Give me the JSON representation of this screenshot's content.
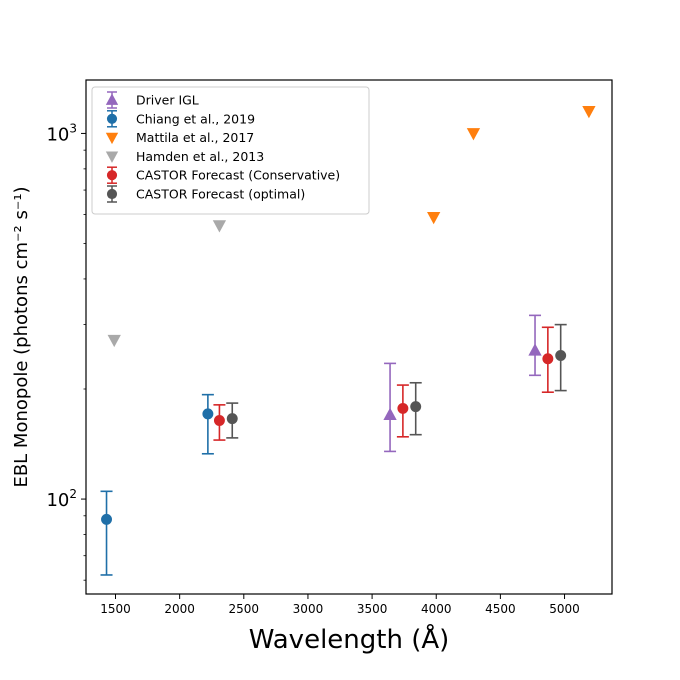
{
  "chart_data": {
    "type": "scatter",
    "title": "",
    "xlabel": "Wavelength (Å)",
    "ylabel": "EBL Monopole (photons cm⁻² s⁻¹)",
    "xlim": [
      1270,
      5370
    ],
    "ylim": [
      55,
      1400
    ],
    "yscale": "log",
    "xticks": [
      1500,
      2000,
      2500,
      3000,
      3500,
      4000,
      4500,
      5000
    ],
    "yticks": [
      {
        "value": 100,
        "base": "10",
        "exp": "2"
      },
      {
        "value": 1000,
        "base": "10",
        "exp": "3"
      }
    ],
    "grid": false,
    "legend_position": "upper-left",
    "series": [
      {
        "name": "Driver IGL",
        "color": "#9467bd",
        "marker": "triangle-up",
        "errorbars": true,
        "points": [
          {
            "x": 3640,
            "y": 170,
            "ylow": 135,
            "yhigh": 235
          },
          {
            "x": 4770,
            "y": 255,
            "ylow": 218,
            "yhigh": 318
          }
        ]
      },
      {
        "name": "Chiang et al., 2019",
        "color": "#1f6fa8",
        "marker": "circle",
        "errorbars": true,
        "points": [
          {
            "x": 1430,
            "y": 88,
            "ylow": 62,
            "yhigh": 105
          },
          {
            "x": 2220,
            "y": 171,
            "ylow": 133,
            "yhigh": 193
          }
        ]
      },
      {
        "name": "Mattila et al., 2017",
        "color": "#ff7f0e",
        "marker": "triangle-down",
        "errorbars": false,
        "points": [
          {
            "x": 3980,
            "y": 590
          },
          {
            "x": 4290,
            "y": 1000
          },
          {
            "x": 5190,
            "y": 1150
          }
        ]
      },
      {
        "name": "Hamden et al., 2013",
        "color": "#a9a9a9",
        "marker": "triangle-down",
        "errorbars": false,
        "points": [
          {
            "x": 1490,
            "y": 272
          },
          {
            "x": 2310,
            "y": 560
          }
        ]
      },
      {
        "name": "CASTOR Forecast (Conservative)",
        "color": "#d62728",
        "marker": "circle",
        "errorbars": true,
        "points": [
          {
            "x": 2310,
            "y": 164,
            "ylow": 145,
            "yhigh": 181
          },
          {
            "x": 3740,
            "y": 177,
            "ylow": 148,
            "yhigh": 205
          },
          {
            "x": 4870,
            "y": 242,
            "ylow": 196,
            "yhigh": 295
          }
        ]
      },
      {
        "name": "CASTOR Forecast (optimal)",
        "color": "#555555",
        "marker": "circle",
        "errorbars": true,
        "points": [
          {
            "x": 2410,
            "y": 166,
            "ylow": 147,
            "yhigh": 183
          },
          {
            "x": 3840,
            "y": 179,
            "ylow": 150,
            "yhigh": 208
          },
          {
            "x": 4970,
            "y": 247,
            "ylow": 198,
            "yhigh": 300
          }
        ]
      }
    ]
  }
}
